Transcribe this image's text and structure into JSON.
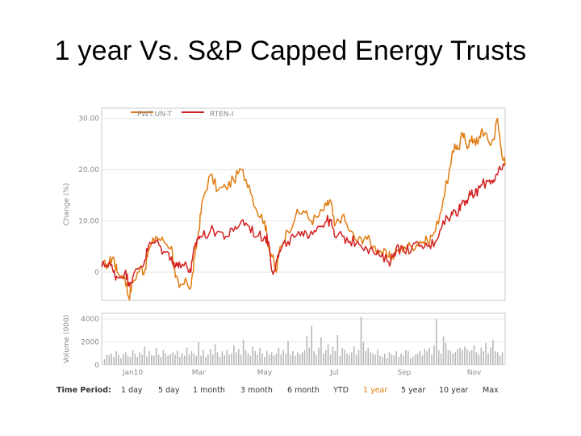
{
  "slide": {
    "title": "1 year Vs. S&P Capped Energy Trusts"
  },
  "colors": {
    "series_a": "#e07b10",
    "series_b": "#d42020",
    "volume": "#b8b8b8",
    "grid": "#e8e8e8",
    "border": "#c8c8c8"
  },
  "chart_data": {
    "type": "line",
    "title": "1 year Vs. S&P Capped Energy Trusts",
    "ylabel": "Change (%)",
    "yticks": [
      {
        "value": 0,
        "label": "0"
      },
      {
        "value": 10,
        "label": "10.00"
      },
      {
        "value": 20,
        "label": "20.00"
      },
      {
        "value": 30,
        "label": "30.00"
      }
    ],
    "ylim": [
      -5.5,
      32
    ],
    "xlim": [
      0,
      52
    ],
    "x_unit": "week",
    "xticks": [
      {
        "value": 4,
        "label": "Jan10"
      },
      {
        "value": 12.5,
        "label": "Mar"
      },
      {
        "value": 21,
        "label": "May"
      },
      {
        "value": 30,
        "label": "Jul"
      },
      {
        "value": 39,
        "label": "Sep"
      },
      {
        "value": 48,
        "label": "Nov"
      }
    ],
    "series": [
      {
        "name": "PWT.UN-T",
        "color": "#e07b10",
        "x": [
          0,
          1,
          1.5,
          2,
          3,
          3.5,
          4,
          5,
          5.5,
          6,
          7,
          8,
          9,
          9.5,
          10,
          11,
          11.5,
          12,
          12.5,
          13,
          14,
          15,
          16,
          17,
          18,
          19,
          20,
          21,
          21.5,
          22,
          22.5,
          23,
          24,
          25,
          26,
          27,
          28,
          29,
          29.5,
          30,
          31,
          32,
          33,
          34,
          35,
          36,
          37,
          37.5,
          38,
          39,
          40,
          41,
          42,
          43,
          44,
          45,
          45.5,
          46,
          46.5,
          47,
          47.5,
          48,
          48.5,
          49,
          50,
          50.5,
          51,
          51.5,
          52
        ],
        "values": [
          1,
          2,
          3,
          0,
          -1,
          -5,
          -2,
          1,
          0,
          4,
          7,
          6,
          5,
          -1,
          -3,
          -2,
          -3,
          3,
          8,
          14,
          19,
          16,
          16.5,
          18,
          20,
          17,
          12,
          10,
          5,
          3,
          0,
          5,
          8,
          11,
          12,
          10,
          11,
          13,
          14,
          9,
          11,
          8,
          6,
          7,
          5,
          4,
          3,
          3,
          4,
          5,
          5,
          6,
          6,
          8,
          14,
          21,
          25,
          24,
          27,
          25,
          25.5,
          26,
          25,
          28,
          25,
          26,
          30,
          24,
          21
        ]
      },
      {
        "name": "RTEN-I",
        "color": "#d42020",
        "x": [
          0,
          1,
          1.5,
          2,
          3,
          3.5,
          4,
          5,
          5.5,
          6,
          7,
          8,
          9,
          9.5,
          10,
          11,
          11.5,
          12,
          12.5,
          13,
          14,
          15,
          16,
          17,
          18,
          19,
          20,
          21,
          21.5,
          22,
          22.5,
          23,
          24,
          25,
          26,
          27,
          28,
          29,
          29.5,
          30,
          31,
          32,
          33,
          34,
          35,
          36,
          37,
          37.5,
          38,
          39,
          40,
          41,
          42,
          43,
          44,
          45,
          45.5,
          46,
          46.5,
          47,
          47.5,
          48,
          48.5,
          49,
          50,
          50.5,
          51,
          51.5,
          52
        ],
        "values": [
          1,
          2,
          0,
          -1,
          0,
          -2,
          -1,
          1,
          2,
          5,
          6,
          4,
          3,
          1,
          2,
          1,
          0,
          5,
          7,
          7,
          8,
          8,
          7,
          8,
          10,
          9,
          7,
          7,
          6,
          0,
          2,
          4,
          6,
          7,
          7,
          8,
          9,
          10,
          10,
          7,
          7,
          6,
          6,
          5,
          4,
          3,
          2,
          3,
          5,
          4,
          5,
          5,
          5,
          6,
          10,
          11,
          12,
          12,
          14,
          14,
          15,
          15,
          16,
          17,
          18,
          18,
          19,
          20,
          21
        ]
      }
    ],
    "volume": {
      "ylabel": "Volume (000)",
      "ylim": [
        0,
        4500
      ],
      "yticks": [
        {
          "value": 0,
          "label": "0"
        },
        {
          "value": 2000,
          "label": "2000"
        },
        {
          "value": 4000,
          "label": "4000"
        }
      ],
      "values": [
        500,
        900,
        850,
        1000,
        700,
        1200,
        900,
        600,
        950,
        1100,
        800,
        700,
        1300,
        1000,
        700,
        1100,
        900,
        1600,
        750,
        1200,
        900,
        800,
        1500,
        900,
        700,
        1300,
        1000,
        800,
        950,
        1100,
        900,
        1250,
        700,
        1000,
        800,
        1500,
        900,
        1200,
        1000,
        800,
        2000,
        800,
        1300,
        700,
        900,
        1400,
        900,
        1800,
        1100,
        700,
        1200,
        850,
        1300,
        900,
        1000,
        1700,
        1100,
        1400,
        900,
        2200,
        1300,
        1000,
        800,
        1600,
        1200,
        900,
        1500,
        1000,
        700,
        1200,
        900,
        1100,
        800,
        1000,
        1500,
        900,
        1300,
        1000,
        2100,
        900,
        1200,
        800,
        1100,
        900,
        1100,
        1300,
        2500,
        1500,
        3400,
        1200,
        900,
        1500,
        2400,
        1000,
        1300,
        1800,
        900,
        1600,
        1200,
        2600,
        800,
        1500,
        1300,
        1000,
        900,
        1100,
        1600,
        900,
        1300,
        4200,
        2000,
        1200,
        1500,
        1100,
        1000,
        900,
        1300,
        800,
        700,
        1000,
        600,
        1100,
        900,
        800,
        1200,
        700,
        1000,
        800,
        1300,
        1200,
        600,
        700,
        900,
        1000,
        1200,
        800,
        1400,
        1200,
        1500,
        900,
        1700,
        4000,
        1300,
        1000,
        2500,
        1900,
        1300,
        1200,
        1000,
        1100,
        1400,
        1500,
        1300,
        1600,
        1400,
        1200,
        1300,
        1700,
        1100,
        900,
        1500,
        1200,
        1900,
        1000,
        1500,
        2200,
        1200,
        1100,
        800,
        1100
      ]
    },
    "legend": [
      {
        "label": "PWT.UN-T",
        "color": "#e07b10"
      },
      {
        "label": "RTEN-I",
        "color": "#d42020"
      }
    ]
  },
  "time_period": {
    "label": "Time Period:",
    "options": [
      {
        "label": "1 day",
        "active": false
      },
      {
        "label": "5 day",
        "active": false
      },
      {
        "label": "1 month",
        "active": false
      },
      {
        "label": "3 month",
        "active": false
      },
      {
        "label": "6 month",
        "active": false
      },
      {
        "label": "YTD",
        "active": false
      },
      {
        "label": "1 year",
        "active": true
      },
      {
        "label": "5 year",
        "active": false
      },
      {
        "label": "10 year",
        "active": false
      },
      {
        "label": "Max",
        "active": false
      }
    ]
  }
}
